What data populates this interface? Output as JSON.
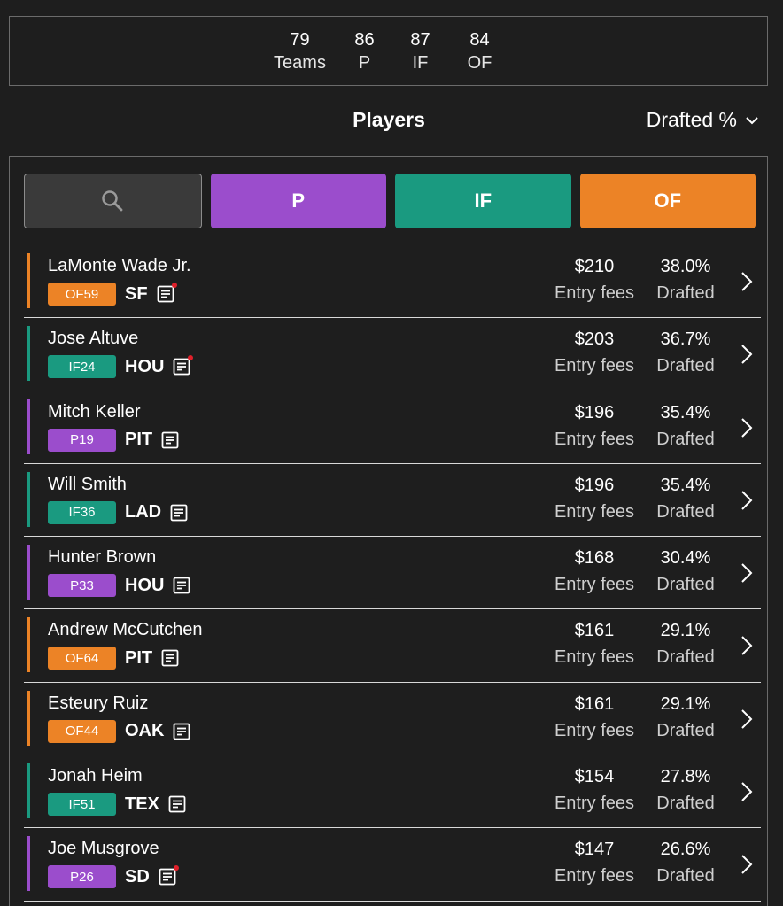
{
  "stats": [
    {
      "value": "79",
      "label": "Teams"
    },
    {
      "value": "86",
      "label": "P"
    },
    {
      "value": "87",
      "label": "IF"
    },
    {
      "value": "84",
      "label": "OF"
    }
  ],
  "header": {
    "title": "Players",
    "sort_label": "Drafted %"
  },
  "filters": {
    "search_icon": "search-icon",
    "p_label": "P",
    "if_label": "IF",
    "of_label": "OF"
  },
  "colors": {
    "P": "#9b4dcc",
    "IF": "#1a9a80",
    "OF": "#ec8326"
  },
  "players": [
    {
      "name": "LaMonte Wade Jr.",
      "pos": "OF",
      "badge": "OF59",
      "team": "SF",
      "note_alert": true,
      "fees": "$210",
      "fees_label": "Entry fees",
      "drafted": "38.0%",
      "drafted_label": "Drafted"
    },
    {
      "name": "Jose Altuve",
      "pos": "IF",
      "badge": "IF24",
      "team": "HOU",
      "note_alert": true,
      "fees": "$203",
      "fees_label": "Entry fees",
      "drafted": "36.7%",
      "drafted_label": "Drafted"
    },
    {
      "name": "Mitch Keller",
      "pos": "P",
      "badge": "P19",
      "team": "PIT",
      "note_alert": false,
      "fees": "$196",
      "fees_label": "Entry fees",
      "drafted": "35.4%",
      "drafted_label": "Drafted"
    },
    {
      "name": "Will Smith",
      "pos": "IF",
      "badge": "IF36",
      "team": "LAD",
      "note_alert": false,
      "fees": "$196",
      "fees_label": "Entry fees",
      "drafted": "35.4%",
      "drafted_label": "Drafted"
    },
    {
      "name": "Hunter Brown",
      "pos": "P",
      "badge": "P33",
      "team": "HOU",
      "note_alert": false,
      "fees": "$168",
      "fees_label": "Entry fees",
      "drafted": "30.4%",
      "drafted_label": "Drafted"
    },
    {
      "name": "Andrew McCutchen",
      "pos": "OF",
      "badge": "OF64",
      "team": "PIT",
      "note_alert": false,
      "fees": "$161",
      "fees_label": "Entry fees",
      "drafted": "29.1%",
      "drafted_label": "Drafted"
    },
    {
      "name": "Esteury Ruiz",
      "pos": "OF",
      "badge": "OF44",
      "team": "OAK",
      "note_alert": false,
      "fees": "$161",
      "fees_label": "Entry fees",
      "drafted": "29.1%",
      "drafted_label": "Drafted"
    },
    {
      "name": "Jonah Heim",
      "pos": "IF",
      "badge": "IF51",
      "team": "TEX",
      "note_alert": false,
      "fees": "$154",
      "fees_label": "Entry fees",
      "drafted": "27.8%",
      "drafted_label": "Drafted"
    },
    {
      "name": "Joe Musgrove",
      "pos": "P",
      "badge": "P26",
      "team": "SD",
      "note_alert": true,
      "fees": "$147",
      "fees_label": "Entry fees",
      "drafted": "26.6%",
      "drafted_label": "Drafted"
    }
  ]
}
